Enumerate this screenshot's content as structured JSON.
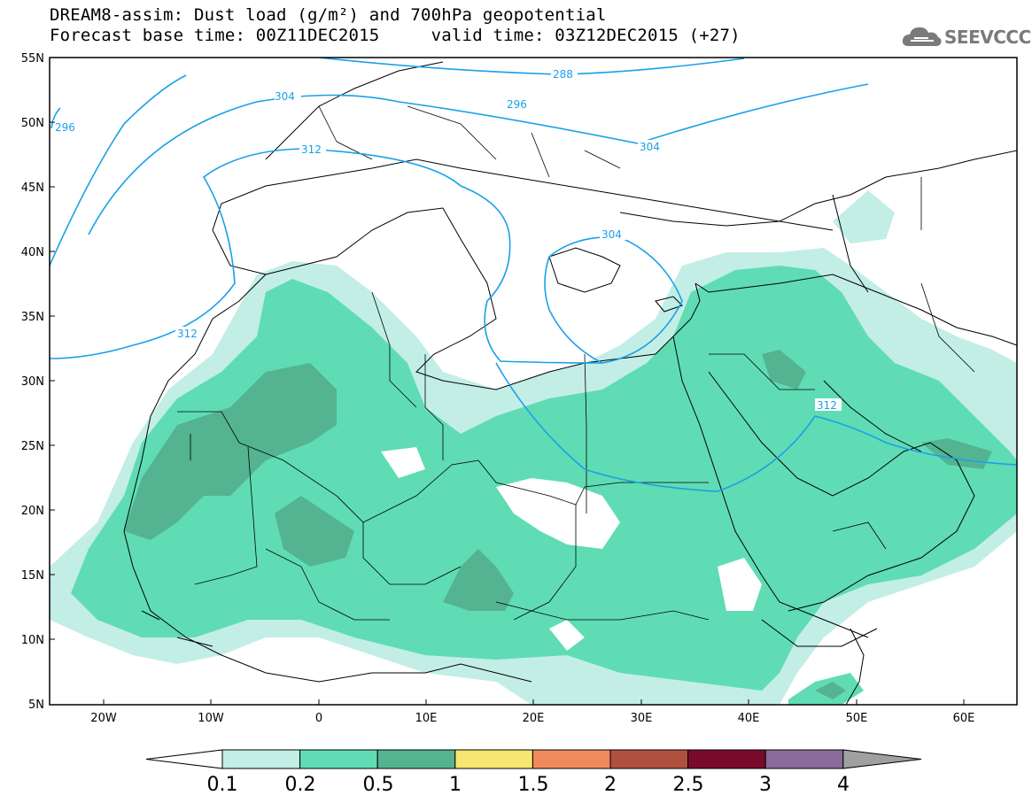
{
  "header": {
    "title_line1": "DREAM8-assim: Dust load (g/m²) and 700hPa geopotential",
    "title_line2": "Forecast base time: 00Z11DEC2015     valid time: 03Z12DEC2015 (+27)",
    "logo_text": "SEEVCCC"
  },
  "map": {
    "lat_labels": [
      "55N",
      "50N",
      "45N",
      "40N",
      "35N",
      "30N",
      "25N",
      "20N",
      "15N",
      "10N",
      "5N"
    ],
    "lon_labels": [
      "20W",
      "10W",
      "0",
      "10E",
      "20E",
      "30E",
      "40E",
      "50E",
      "60E"
    ],
    "contour_labels": [
      "288",
      "296",
      "304",
      "312",
      "296",
      "304",
      "312",
      "304",
      "312"
    ],
    "contour_color": "#1aa0e8",
    "dust_colors": {
      "c01": "#c2eee6",
      "c02": "#5fdcb4",
      "c05": "#54b391"
    }
  },
  "colorbar": {
    "labels": [
      "0.1",
      "0.2",
      "0.5",
      "1",
      "1.5",
      "2",
      "2.5",
      "3",
      "4"
    ],
    "colors": [
      "#ffffff",
      "#c2eee6",
      "#5fdcb4",
      "#54b391",
      "#f7e66f",
      "#f08a5d",
      "#b0503f",
      "#7a0a2c",
      "#8a6a9a",
      "#a0a0a0"
    ]
  }
}
